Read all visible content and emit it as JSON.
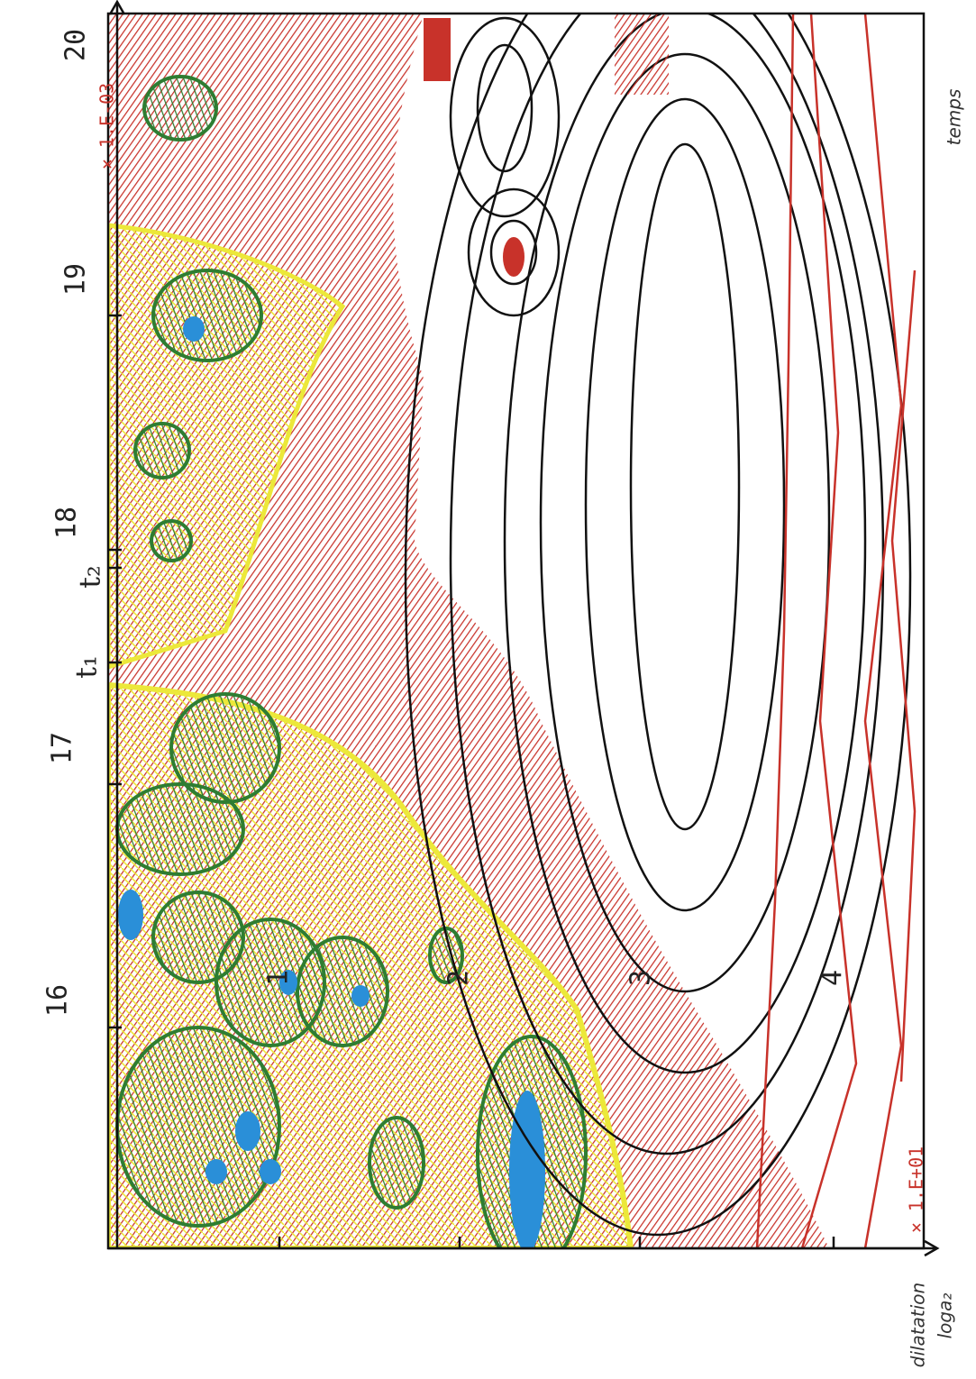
{
  "plot": {
    "time_axis": {
      "label": "temps",
      "ticks": [
        "16",
        "17",
        "18",
        "19",
        "20"
      ],
      "markers": [
        "t₁",
        "t₂"
      ],
      "scale": "× 1.E-03"
    },
    "dilatation_axis": {
      "label": "dilatation",
      "sublabel": "loga₂",
      "ticks": [
        "1",
        "2",
        "3",
        "4"
      ],
      "scale": "× 1.E+01"
    }
  }
}
